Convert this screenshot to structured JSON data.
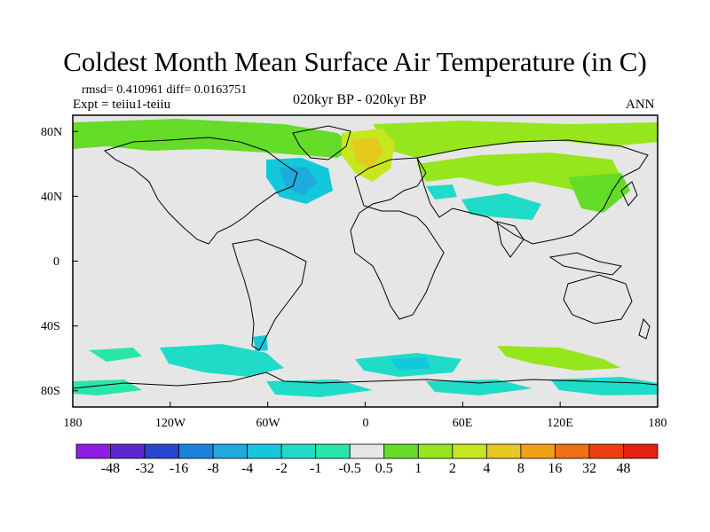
{
  "header": {
    "title": "Coldest Month Mean Surface Air Temperature (in C)",
    "stats": "rmsd= 0.410961 diff= 0.0163751",
    "experiment": "Expt = teiiu1-teiiu",
    "period": "020kyr BP - 020kyr BP",
    "season": "ANN"
  },
  "map": {
    "lat_range": [
      -90,
      90
    ],
    "lon_range": [
      -180,
      180
    ],
    "lat_labels": [
      "80N",
      "40N",
      "0",
      "40S",
      "80S"
    ],
    "lon_labels": [
      "180",
      "120W",
      "60W",
      "0",
      "60E",
      "120E",
      "180"
    ],
    "background_color": "#e6e6e6",
    "coastline_color": "#000000"
  },
  "colorbar": {
    "labels": [
      "-48",
      "-32",
      "-16",
      "-8",
      "-4",
      "-2",
      "-1",
      "-0.5",
      "0.5",
      "1",
      "2",
      "4",
      "8",
      "16",
      "32",
      "48"
    ],
    "colors": [
      "#8c1ee6",
      "#5a28d2",
      "#2846d2",
      "#1e82dc",
      "#1eaadc",
      "#14c8dc",
      "#1edcc8",
      "#28e6aa",
      "#e6e6e6",
      "#64dc28",
      "#96e61e",
      "#c8e61e",
      "#e6c81e",
      "#f0a014",
      "#f06e14",
      "#f03c14",
      "#e61e14"
    ]
  }
}
